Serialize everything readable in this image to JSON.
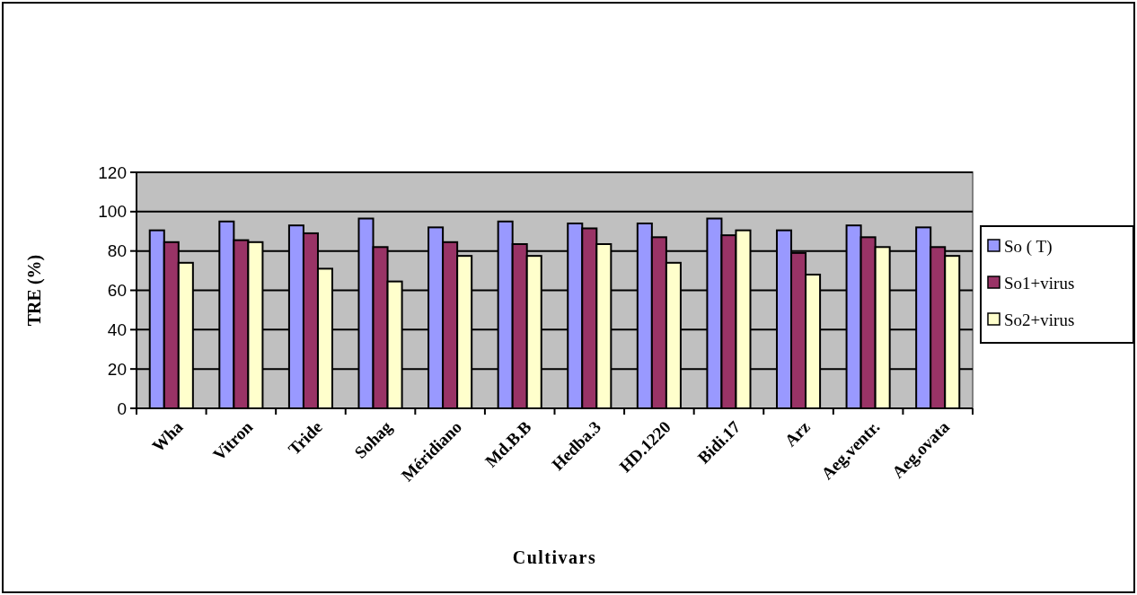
{
  "chart_data": {
    "type": "bar",
    "xlabel": "Cultivars",
    "ylabel": "TRE (%)",
    "categories": [
      "Wha",
      "Vitron",
      "Tride",
      "Sohag",
      "Méridiano",
      "Md.B.B",
      "Hedba.3",
      "HD.1220",
      "Bidi.17",
      "Arz",
      "Aeg.ventr.",
      "Aeg.ovata"
    ],
    "series": [
      {
        "name": "So ( T)",
        "color": "#9999ff",
        "values": [
          90.5,
          95,
          93,
          96.5,
          92,
          95,
          94,
          94,
          96.5,
          90.5,
          93,
          92
        ]
      },
      {
        "name": "So1+virus",
        "color": "#993366",
        "values": [
          84.5,
          85.5,
          89,
          82,
          84.5,
          83.5,
          91.5,
          87,
          88,
          79,
          87,
          82
        ]
      },
      {
        "name": "So2+virus",
        "color": "#ffffcc",
        "values": [
          74,
          84.5,
          71,
          64.5,
          77.5,
          77.5,
          83.5,
          74,
          90.5,
          68,
          82,
          77.5
        ]
      }
    ],
    "ylim": [
      0,
      120
    ],
    "yticks": [
      0,
      20,
      40,
      60,
      80,
      100,
      120
    ],
    "grid": "y",
    "legend": "right"
  }
}
